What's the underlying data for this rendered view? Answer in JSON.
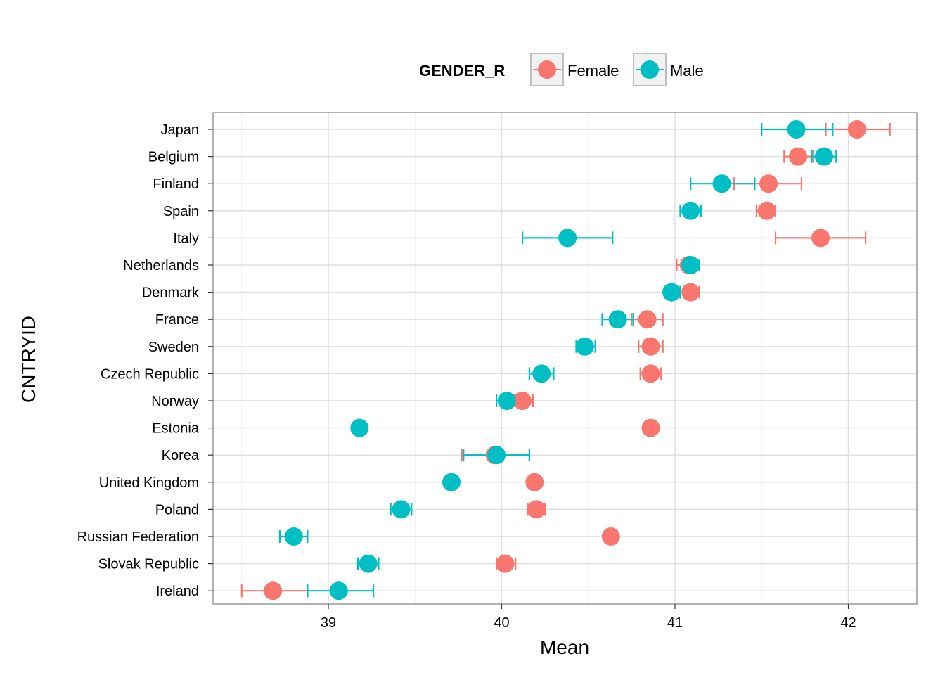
{
  "chart_data": {
    "type": "scatter",
    "xlabel": "Mean",
    "ylabel": "CNTRYID",
    "xlim": [
      38.35,
      42.4
    ],
    "x_ticks": [
      39,
      40,
      41,
      42
    ],
    "grid": true,
    "legend": {
      "title": "GENDER_R",
      "placement": "top",
      "entries": [
        {
          "name": "Female",
          "color": "#F8766D"
        },
        {
          "name": "Male",
          "color": "#00BFC4"
        }
      ]
    },
    "categories": [
      "Japan",
      "Belgium",
      "Finland",
      "Spain",
      "Italy",
      "Netherlands",
      "Denmark",
      "France",
      "Sweden",
      "Czech Republic",
      "Norway",
      "Estonia",
      "Korea",
      "United Kingdom",
      "Poland",
      "Russian Federation",
      "Slovak Republic",
      "Ireland"
    ],
    "series": [
      {
        "name": "Female",
        "color": "#F8766D",
        "values": [
          42.05,
          41.71,
          41.54,
          41.53,
          41.84,
          41.08,
          41.09,
          40.84,
          40.86,
          40.86,
          40.12,
          40.86,
          39.96,
          40.19,
          40.2,
          40.63,
          40.02,
          38.68
        ],
        "error_low": [
          41.87,
          41.63,
          41.34,
          41.47,
          41.58,
          41.01,
          41.05,
          40.75,
          40.79,
          40.8,
          40.07,
          null,
          39.77,
          null,
          40.15,
          null,
          39.97,
          38.5
        ],
        "error_high": [
          42.24,
          41.8,
          41.73,
          41.58,
          42.1,
          41.14,
          41.14,
          40.93,
          40.93,
          40.92,
          40.18,
          null,
          40.16,
          null,
          40.25,
          null,
          40.08,
          38.88
        ]
      },
      {
        "name": "Male",
        "color": "#00BFC4",
        "values": [
          41.7,
          41.86,
          41.27,
          41.09,
          40.38,
          41.09,
          40.98,
          40.67,
          40.48,
          40.23,
          40.03,
          39.18,
          39.97,
          39.71,
          39.42,
          38.8,
          39.23,
          39.06
        ],
        "error_low": [
          41.5,
          41.79,
          41.09,
          41.03,
          40.12,
          41.04,
          40.94,
          40.58,
          40.43,
          40.16,
          39.97,
          null,
          39.78,
          null,
          39.36,
          38.72,
          39.17,
          38.88
        ],
        "error_high": [
          41.91,
          41.93,
          41.46,
          41.15,
          40.64,
          41.14,
          41.03,
          40.76,
          40.54,
          40.3,
          40.08,
          null,
          40.16,
          null,
          39.48,
          38.88,
          39.29,
          39.26
        ]
      }
    ]
  }
}
